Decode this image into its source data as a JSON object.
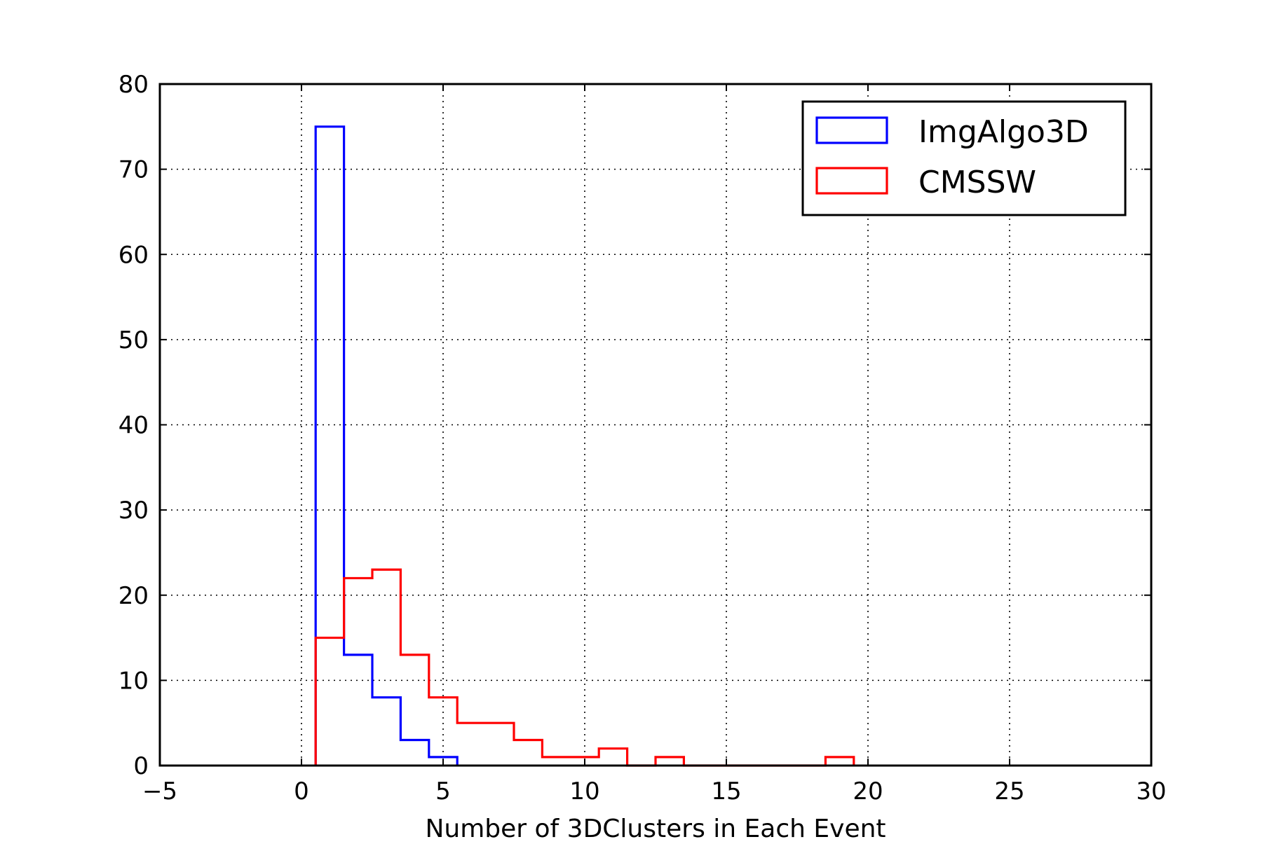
{
  "chart_data": {
    "type": "histogram",
    "title": "",
    "xlabel": "Number of 3DClusters in Each Event",
    "ylabel": "",
    "xlim": [
      -5,
      30
    ],
    "ylim": [
      0,
      80
    ],
    "xticks": [
      -5,
      0,
      5,
      10,
      15,
      20,
      25,
      30
    ],
    "yticks": [
      0,
      10,
      20,
      30,
      40,
      50,
      60,
      70,
      80
    ],
    "xtick_labels": [
      "−5",
      "0",
      "5",
      "10",
      "15",
      "20",
      "25",
      "30"
    ],
    "ytick_labels": [
      "0",
      "10",
      "20",
      "30",
      "40",
      "50",
      "60",
      "70",
      "80"
    ],
    "grid": true,
    "legend_position": "top-right",
    "series": [
      {
        "name": "ImgAlgo3D",
        "color": "#0000ff",
        "histtype": "step",
        "bin_edges": [
          0.5,
          1.5,
          2.5,
          3.5,
          4.5,
          5.5
        ],
        "counts": [
          75,
          13,
          8,
          3,
          1
        ]
      },
      {
        "name": "CMSSW",
        "color": "#ff0000",
        "histtype": "step",
        "bin_edges": [
          0.5,
          1.5,
          2.5,
          3.5,
          4.5,
          5.5,
          6.5,
          7.5,
          8.5,
          9.5,
          10.5,
          11.5,
          12.5,
          13.5,
          14.5,
          15.5,
          16.5,
          17.5,
          18.5,
          19.5
        ],
        "counts": [
          15,
          22,
          23,
          13,
          8,
          5,
          5,
          3,
          1,
          1,
          2,
          0,
          1,
          0,
          0,
          0,
          0,
          0,
          1
        ]
      }
    ]
  }
}
